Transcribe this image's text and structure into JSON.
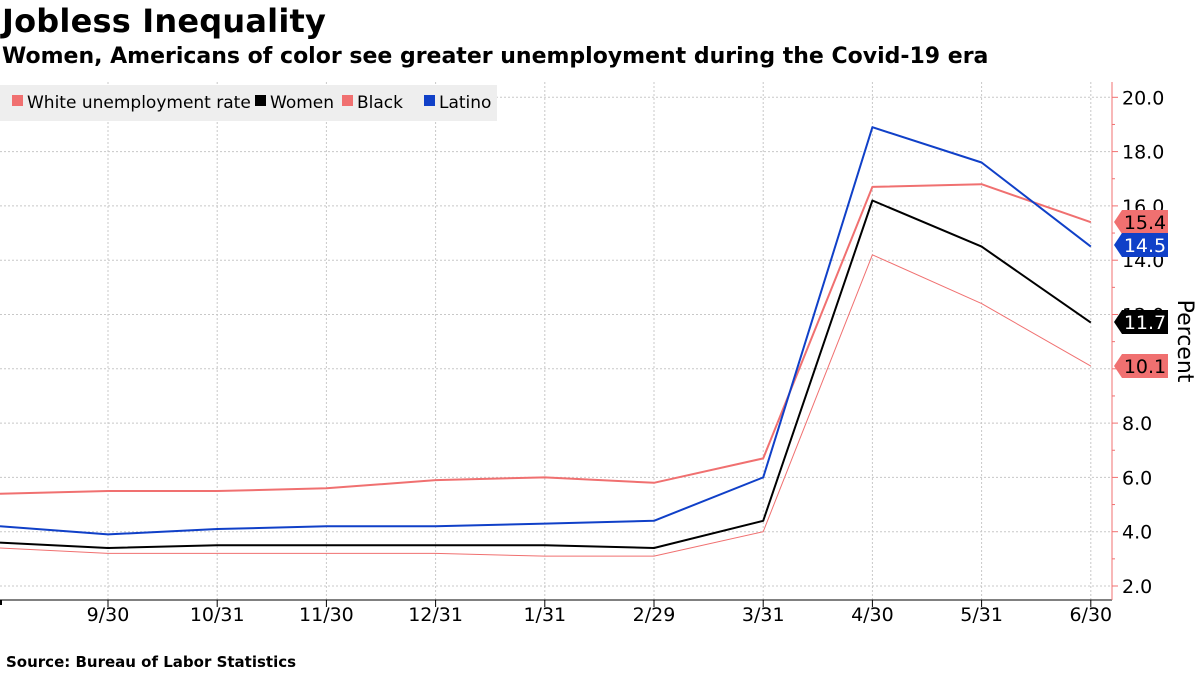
{
  "header": {
    "title": "Jobless Inequality",
    "subtitle": "Women, Americans of color see greater unemployment during the Covid-19 era"
  },
  "footer": {
    "source": "Source: Bureau of Labor Statistics"
  },
  "chart_data": {
    "type": "line",
    "title": "Jobless Inequality",
    "subtitle": "Women, Americans of color see greater unemployment during the Covid-19 era",
    "ylabel": "Percent",
    "xlabel": "",
    "ylim": [
      2,
      20
    ],
    "yticks": [
      2.0,
      4.0,
      6.0,
      8.0,
      10.0,
      12.0,
      14.0,
      16.0,
      18.0,
      20.0
    ],
    "x": [
      "9/30",
      "10/31",
      "11/30",
      "12/31",
      "1/31",
      "2/29",
      "3/31",
      "4/30",
      "5/31",
      "6/30"
    ],
    "leading_values_note": "first point precedes 9/30",
    "categories": [
      "",
      "9/30",
      "10/31",
      "11/30",
      "12/31",
      "1/31",
      "2/29",
      "3/31",
      "4/30",
      "5/31",
      "6/30"
    ],
    "series": [
      {
        "name": "White unemployment rate",
        "color": "#f07070",
        "width": 1,
        "values": [
          3.4,
          3.2,
          3.2,
          3.2,
          3.2,
          3.1,
          3.1,
          4.0,
          14.2,
          12.4,
          10.1
        ]
      },
      {
        "name": "Women",
        "color": "#000000",
        "width": 2,
        "values": [
          3.6,
          3.4,
          3.5,
          3.5,
          3.5,
          3.5,
          3.4,
          4.4,
          16.2,
          14.5,
          11.7
        ]
      },
      {
        "name": "Black",
        "color": "#f07070",
        "width": 2,
        "values": [
          5.4,
          5.5,
          5.5,
          5.6,
          5.9,
          6.0,
          5.8,
          6.7,
          16.7,
          16.8,
          15.4
        ]
      },
      {
        "name": "Latino",
        "color": "#1040c8",
        "width": 2,
        "values": [
          4.2,
          3.9,
          4.1,
          4.2,
          4.2,
          4.3,
          4.4,
          6.0,
          18.9,
          17.6,
          14.5
        ]
      }
    ],
    "end_labels": [
      {
        "text": "15.4",
        "value": 15.4,
        "bg": "#f07070",
        "fg": "#000000"
      },
      {
        "text": "14.5",
        "value": 14.5,
        "bg": "#1040c8",
        "fg": "#ffffff"
      },
      {
        "text": "11.7",
        "value": 11.7,
        "bg": "#000000",
        "fg": "#ffffff"
      },
      {
        "text": "10.1",
        "value": 10.1,
        "bg": "#f07070",
        "fg": "#000000"
      }
    ],
    "legend": {
      "position": "top-left",
      "items": [
        {
          "label": "White unemployment rate",
          "color": "#f07070"
        },
        {
          "label": "Women",
          "color": "#000000"
        },
        {
          "label": "Black",
          "color": "#f07070"
        },
        {
          "label": "Latino",
          "color": "#1040c8"
        }
      ]
    },
    "grid": true
  }
}
